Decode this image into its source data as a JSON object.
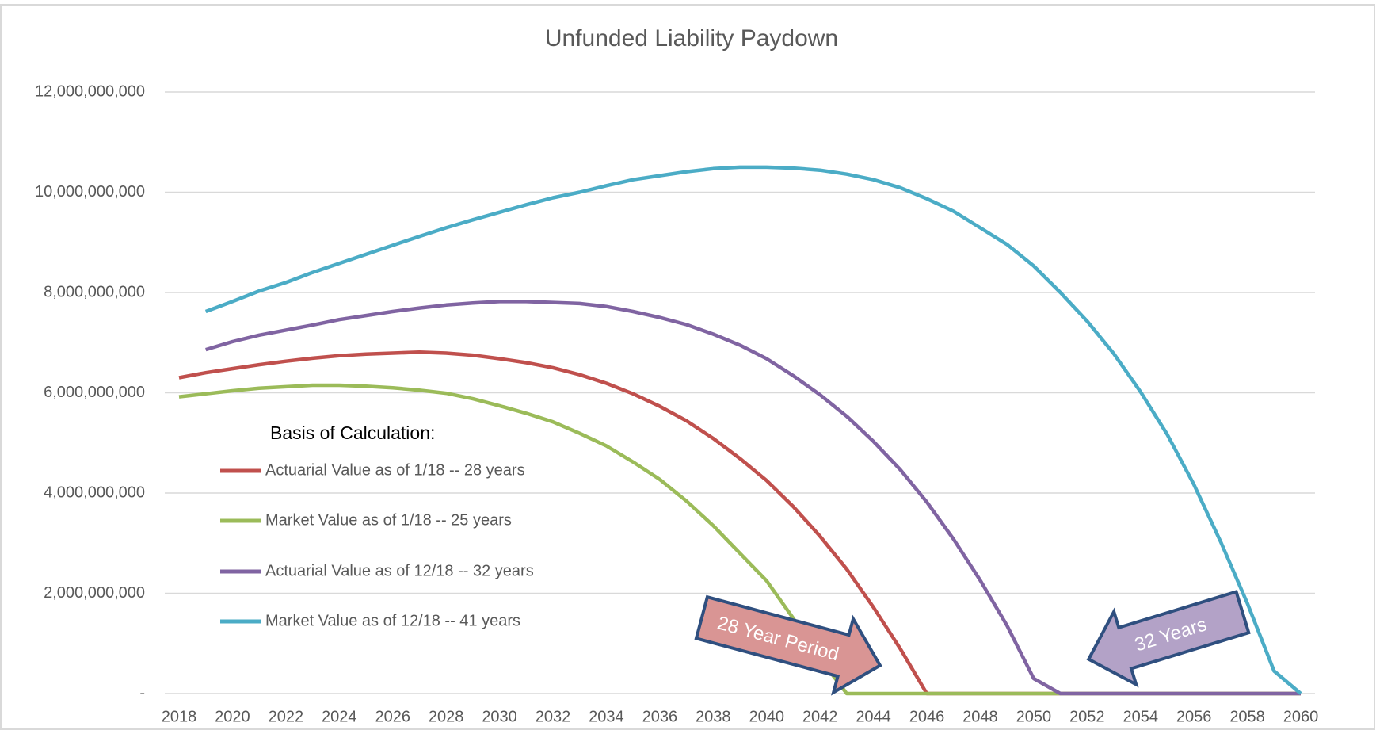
{
  "chart_data": {
    "type": "line",
    "title": "Unfunded Liability Paydown",
    "x": [
      2018,
      2019,
      2020,
      2021,
      2022,
      2023,
      2024,
      2025,
      2026,
      2027,
      2028,
      2029,
      2030,
      2031,
      2032,
      2033,
      2034,
      2035,
      2036,
      2037,
      2038,
      2039,
      2040,
      2041,
      2042,
      2043,
      2044,
      2045,
      2046,
      2047,
      2048,
      2049,
      2050,
      2051,
      2052,
      2053,
      2054,
      2055,
      2056,
      2057,
      2058,
      2059,
      2060
    ],
    "xlim": [
      2018,
      2060
    ],
    "xticks": [
      2018,
      2020,
      2022,
      2024,
      2026,
      2028,
      2030,
      2032,
      2034,
      2036,
      2038,
      2040,
      2042,
      2044,
      2046,
      2048,
      2050,
      2052,
      2054,
      2056,
      2058,
      2060
    ],
    "ylim": [
      0,
      12000000000
    ],
    "yticks": [
      {
        "value": 0,
        "label": "-"
      },
      {
        "value": 2000000000,
        "label": "2,000,000,000"
      },
      {
        "value": 4000000000,
        "label": "4,000,000,000"
      },
      {
        "value": 6000000000,
        "label": "6,000,000,000"
      },
      {
        "value": 8000000000,
        "label": "8,000,000,000"
      },
      {
        "value": 10000000000,
        "label": "10,000,000,000"
      },
      {
        "value": 12000000000,
        "label": "12,000,000,000"
      }
    ],
    "grid": true,
    "legend_title": "Basis of Calculation:",
    "series": [
      {
        "name": "Actuarial Value as of 1/18 -- 28 years",
        "color": "#c0504d",
        "values": [
          6300000000,
          6400000000,
          6480000000,
          6560000000,
          6630000000,
          6690000000,
          6740000000,
          6770000000,
          6790000000,
          6810000000,
          6790000000,
          6750000000,
          6680000000,
          6600000000,
          6500000000,
          6360000000,
          6190000000,
          5980000000,
          5730000000,
          5440000000,
          5090000000,
          4690000000,
          4250000000,
          3730000000,
          3140000000,
          2480000000,
          1720000000,
          900000000,
          0,
          0,
          0,
          0,
          0,
          0,
          0,
          0,
          0,
          0,
          0,
          0,
          0,
          0,
          0
        ]
      },
      {
        "name": "Market Value as of 1/18 -- 25 years",
        "color": "#9bbb59",
        "values": [
          5920000000,
          5980000000,
          6040000000,
          6090000000,
          6120000000,
          6150000000,
          6150000000,
          6130000000,
          6100000000,
          6050000000,
          5990000000,
          5880000000,
          5740000000,
          5590000000,
          5420000000,
          5190000000,
          4940000000,
          4620000000,
          4270000000,
          3840000000,
          3350000000,
          2800000000,
          2250000000,
          1500000000,
          700000000,
          0,
          0,
          0,
          0,
          0,
          0,
          0,
          0,
          0,
          0,
          0,
          0,
          0,
          0,
          0,
          0,
          0,
          0
        ]
      },
      {
        "name": "Actuarial Value as of 12/18 -- 32 years",
        "color": "#8064a2",
        "values": [
          null,
          6860000000,
          7020000000,
          7150000000,
          7250000000,
          7350000000,
          7460000000,
          7540000000,
          7620000000,
          7690000000,
          7750000000,
          7790000000,
          7820000000,
          7820000000,
          7800000000,
          7780000000,
          7720000000,
          7620000000,
          7500000000,
          7360000000,
          7170000000,
          6950000000,
          6680000000,
          6340000000,
          5960000000,
          5530000000,
          5030000000,
          4470000000,
          3820000000,
          3080000000,
          2260000000,
          1360000000,
          300000000,
          0,
          0,
          0,
          0,
          0,
          0,
          0,
          0,
          0,
          0
        ]
      },
      {
        "name": "Market Value as of 12/18 -- 41 years",
        "color": "#4bacc6",
        "values": [
          null,
          7620000000,
          7820000000,
          8030000000,
          8200000000,
          8400000000,
          8580000000,
          8760000000,
          8940000000,
          9120000000,
          9290000000,
          9450000000,
          9600000000,
          9750000000,
          9890000000,
          10000000000,
          10130000000,
          10250000000,
          10330000000,
          10410000000,
          10470000000,
          10500000000,
          10500000000,
          10480000000,
          10440000000,
          10360000000,
          10250000000,
          10090000000,
          9870000000,
          9620000000,
          9290000000,
          8960000000,
          8530000000,
          8000000000,
          7430000000,
          6780000000,
          6020000000,
          5170000000,
          4170000000,
          3030000000,
          1800000000,
          450000000,
          0
        ]
      }
    ],
    "annotations": [
      "28 Year Period",
      "32 Years"
    ]
  }
}
